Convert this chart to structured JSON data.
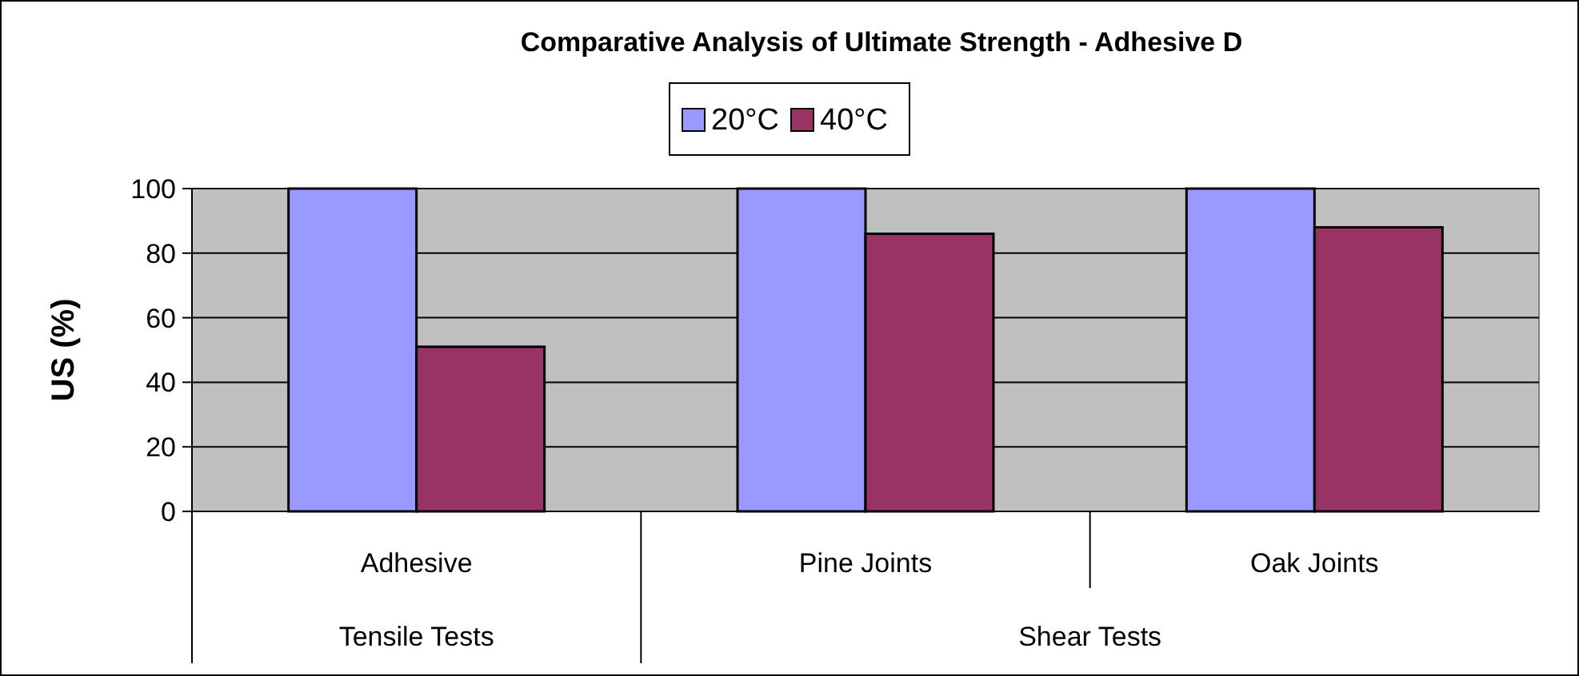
{
  "chart_data": {
    "type": "bar",
    "title": "Comparative Analysis of Ultimate Strength - Adhesive D",
    "ylabel": "US (%)",
    "categories": [
      "Adhesive",
      "Pine Joints",
      "Oak Joints"
    ],
    "series": [
      {
        "name": "20°C",
        "color": "#9999ff",
        "values": [
          100,
          100,
          100
        ]
      },
      {
        "name": "40°C",
        "color": "#993366",
        "values": [
          51,
          86,
          88
        ]
      }
    ],
    "annotations": [
      "Tensile Tests",
      "Shear Tests"
    ],
    "ylim": [
      0,
      100
    ],
    "yticks": [
      0,
      20,
      40,
      60,
      80,
      100
    ],
    "grid": "y",
    "legend": "top"
  }
}
